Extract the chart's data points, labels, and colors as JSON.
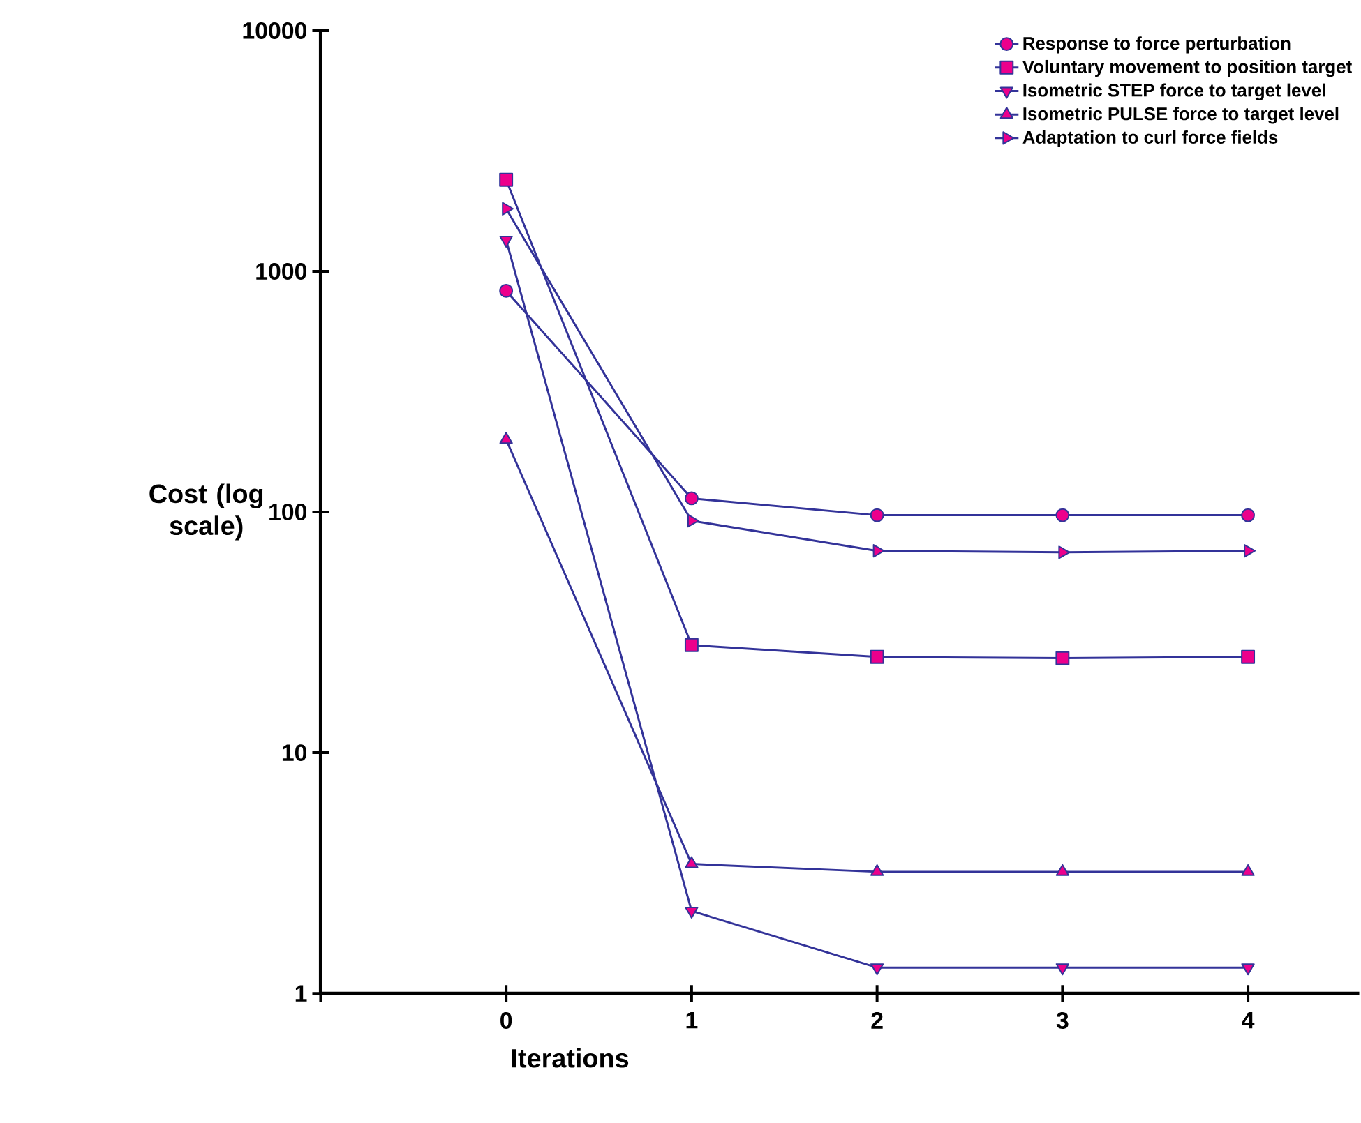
{
  "chart_data": {
    "type": "line",
    "x": [
      0,
      1,
      2,
      3,
      4
    ],
    "xlabel": "Iterations",
    "ylabel": "Cost (log scale)",
    "log": "y",
    "xlim": [
      -1,
      4.6
    ],
    "ylim": [
      1,
      10000
    ],
    "xticks": [
      {
        "value": -1,
        "label": null
      },
      0,
      1,
      2,
      3,
      4
    ],
    "yticks": [
      1,
      10,
      100,
      1000,
      10000
    ],
    "grid": false,
    "legend": "top right",
    "series": [
      {
        "name": "Response to force perturbation",
        "color": "#333399",
        "marker": "circle",
        "values": [
          830,
          114,
          97,
          97,
          97
        ]
      },
      {
        "name": "Voluntary movement to position target",
        "color": "#333399",
        "marker": "square",
        "values": [
          2400,
          28,
          25,
          24.7,
          25
        ]
      },
      {
        "name": "Isometric STEP force to target level",
        "color": "#333399",
        "marker": "triangle-down",
        "values": [
          1350,
          2.2,
          1.28,
          1.28,
          1.28
        ]
      },
      {
        "name": "Isometric PULSE force to target level",
        "color": "#333399",
        "marker": "triangle",
        "values": [
          200,
          3.45,
          3.2,
          3.2,
          3.2
        ]
      },
      {
        "name": "Adaptation to curl force fields",
        "color": "#333399",
        "marker": "triangle-right",
        "values": [
          1820,
          92,
          69,
          68,
          69
        ]
      }
    ]
  }
}
